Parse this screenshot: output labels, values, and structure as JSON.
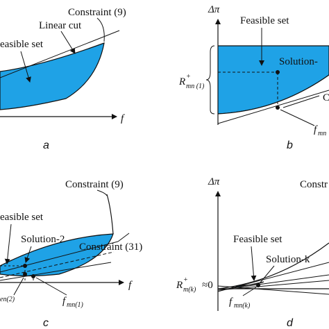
{
  "colors": {
    "feasible_fill": "#1fa2e6",
    "line": "#111111"
  },
  "panel_a": {
    "letter": "a",
    "axis_f": "f",
    "constraint_label": "Constraint (9)",
    "linear_cut_label": "Linear cut",
    "feasible_label": "easible set"
  },
  "panel_b": {
    "letter": "b",
    "axis_dpi": "Δπ",
    "feasible_label": "Feasible set",
    "solution_label": "Solution-",
    "right_partial": "C",
    "r_label_main": "R",
    "r_label_sup": "+",
    "r_label_sub": "mn (1)",
    "f_label_main": "f",
    "f_label_sub": "mn"
  },
  "panel_c": {
    "letter": "c",
    "axis_f": "f",
    "constraint9_label": "Constraint (9)",
    "constraint31_label": "Constraint (31)",
    "feasible_label": "easible set",
    "solution_label": "Solution-2",
    "f_left_sub": "en(2)",
    "f_right_main": "f",
    "f_right_sub": "mn(1)"
  },
  "panel_d": {
    "letter": "d",
    "axis_dpi": "Δπ",
    "constraint_partial": "Constr",
    "feasible_label": "Feasible set",
    "solution_label": "Solution-k",
    "r_label_main": "R",
    "r_label_sup": "+",
    "r_label_sub": "m(k)",
    "r_label_value": "≈0",
    "f_label_main": "f",
    "f_label_sub": "mn(k)"
  }
}
